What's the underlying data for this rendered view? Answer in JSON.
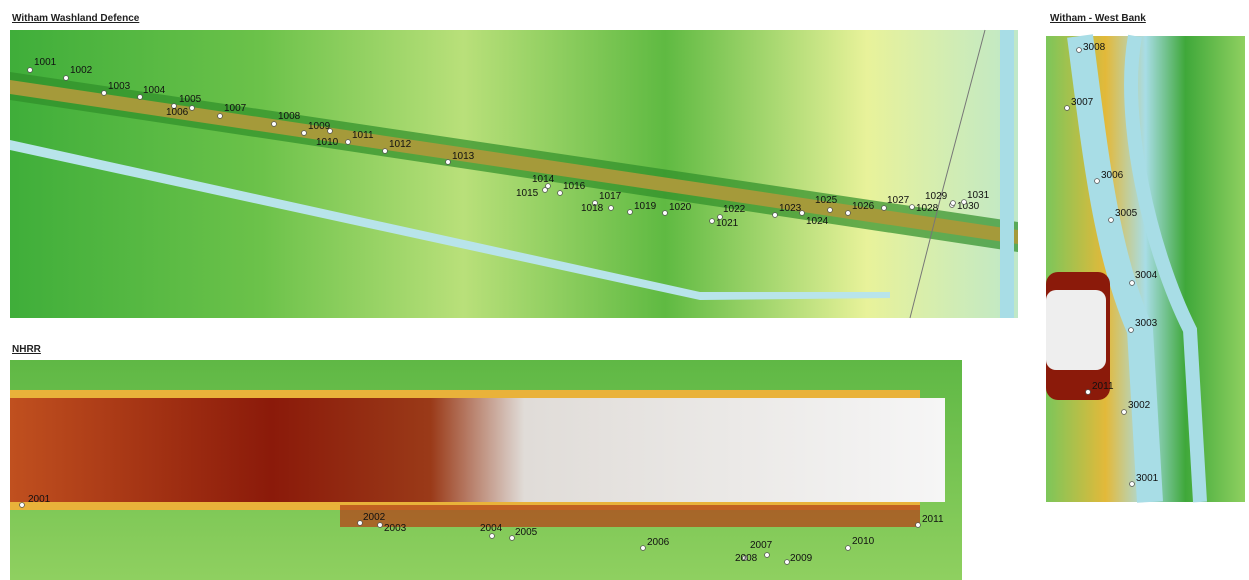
{
  "panels": [
    {
      "title": "Witham Washland Defence",
      "points": [
        "1001",
        "1002",
        "1003",
        "1004",
        "1005",
        "1006",
        "1007",
        "1008",
        "1009",
        "1010",
        "1011",
        "1012",
        "1013",
        "1014",
        "1015",
        "1016",
        "1017",
        "1018",
        "1019",
        "1020",
        "1021",
        "1022",
        "1023",
        "1024",
        "1025",
        "1026",
        "1027",
        "1028",
        "1029",
        "1030",
        "1031"
      ]
    },
    {
      "title": "NHRR",
      "points": [
        "2001",
        "2002",
        "2003",
        "2004",
        "2005",
        "2006",
        "2007",
        "2008",
        "2009",
        "2010",
        "2011"
      ]
    },
    {
      "title": "Witham - West Bank",
      "points": [
        "3008",
        "3007",
        "3006",
        "3005",
        "3004",
        "3003",
        "2011",
        "3002",
        "3001"
      ]
    }
  ]
}
